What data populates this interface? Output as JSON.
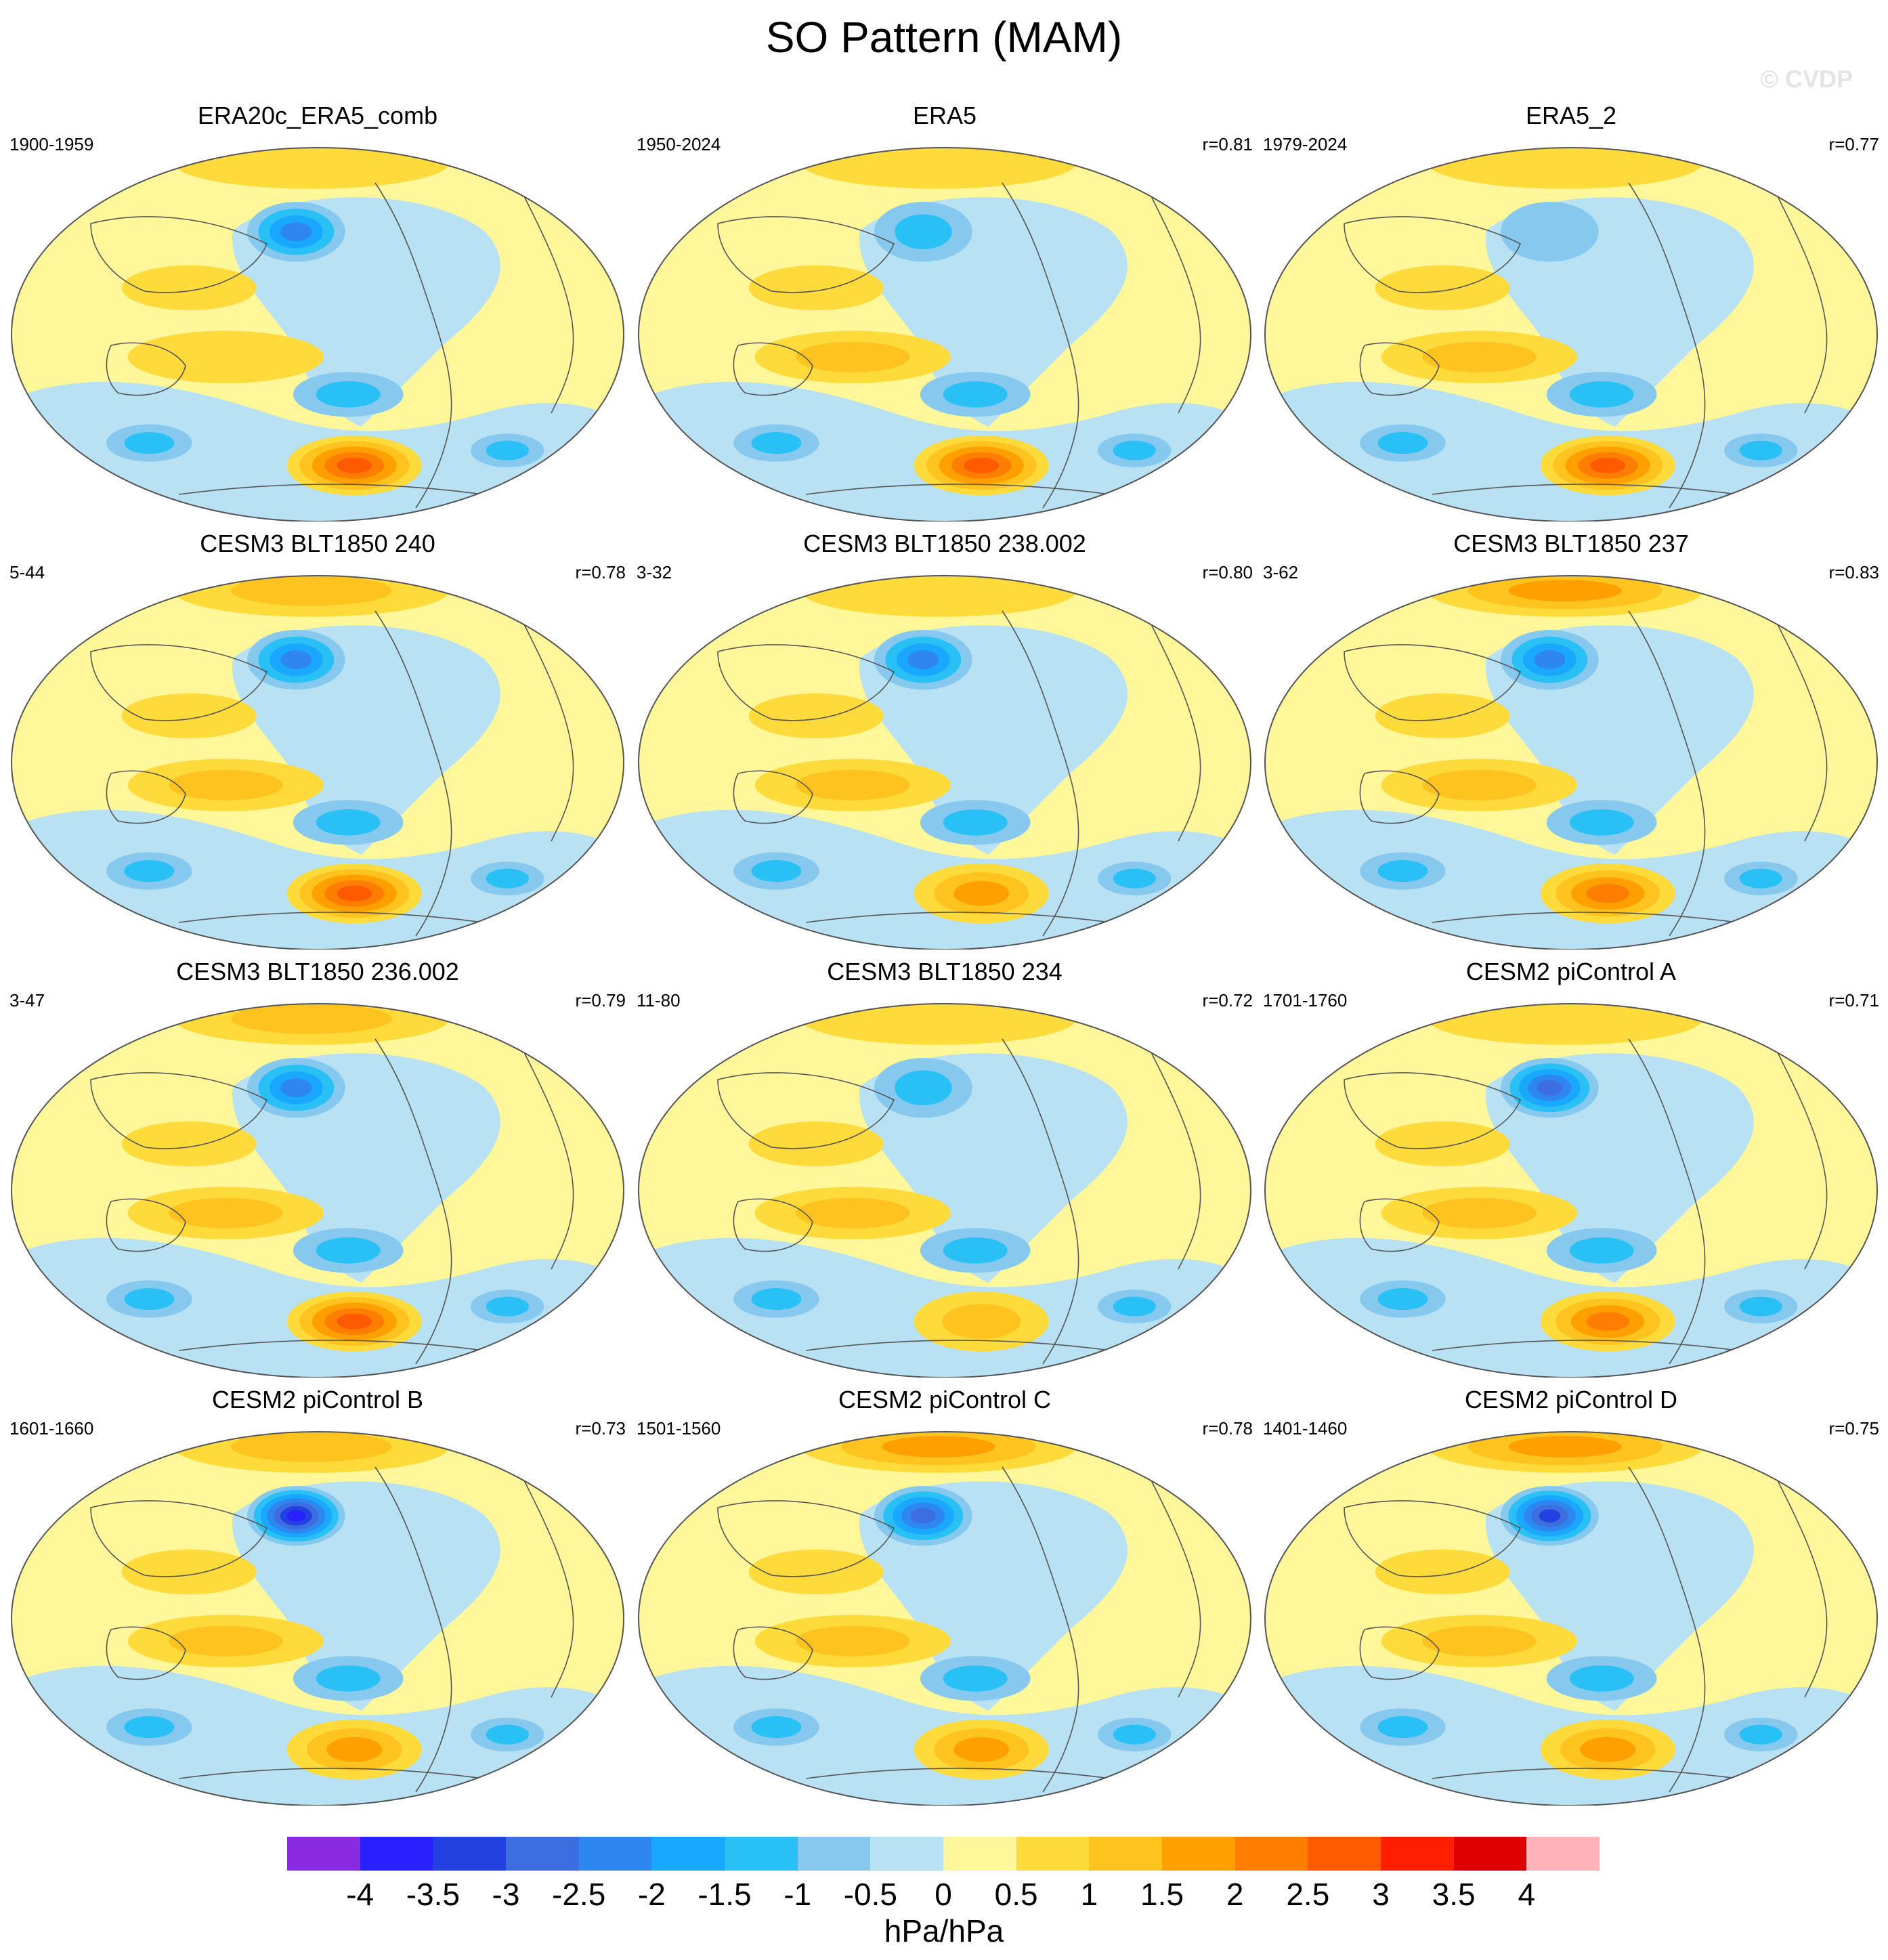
{
  "figure": {
    "title": "SO Pattern (MAM)",
    "watermark": "© CVDP"
  },
  "colors": {
    "neg_-4": "#8a2be2",
    "neg_-3.5": "#2a1fff",
    "neg_-3": "#2340e0",
    "neg_-2.5": "#3c6ee0",
    "neg_-2": "#2e86f0",
    "neg_-1.5": "#1aa8ff",
    "neg_-1": "#29c0f5",
    "neg_-0.5": "#86c8ee",
    "neg_0": "#b8e1f3",
    "pos_0": "#fff79a",
    "pos_0.5": "#ffda3b",
    "pos_1": "#ffc31f",
    "pos_1.5": "#ffa000",
    "pos_2": "#ff7d00",
    "pos_2.5": "#ff5a00",
    "pos_3": "#ff1e00",
    "pos_3.5": "#dd0000",
    "pos_4": "#d8282e",
    "over": "#ffb3b8",
    "coast": "#555555",
    "outline": "#555555"
  },
  "chart_data": {
    "type": "heatmap",
    "projection": "robinson-like global map",
    "units": "hPa/hPa",
    "colorbar_ticks": [
      "-4",
      "-3.5",
      "-3",
      "-2.5",
      "-2",
      "-1.5",
      "-1",
      "-0.5",
      "0",
      "0.5",
      "1",
      "1.5",
      "2",
      "2.5",
      "3",
      "3.5",
      "4"
    ],
    "panels": [
      {
        "title": "ERA20c_ERA5_comb",
        "period": "1900-1959",
        "corr": "",
        "npac_low": -2.0,
        "sh_high": 2.5,
        "arctic": 0.8,
        "ind_aus": 0.8
      },
      {
        "title": "ERA5",
        "period": "1950-2024",
        "corr": "r=0.81",
        "npac_low": -1.0,
        "sh_high": 2.5,
        "arctic": 0.8,
        "ind_aus": 1.0
      },
      {
        "title": "ERA5_2",
        "period": "1979-2024",
        "corr": "r=0.77",
        "npac_low": -0.5,
        "sh_high": 2.5,
        "arctic": 0.6,
        "ind_aus": 1.0
      },
      {
        "title": "CESM3 BLT1850 240",
        "period": "5-44",
        "corr": "r=0.78",
        "npac_low": -2.0,
        "sh_high": 2.5,
        "arctic": 1.2,
        "ind_aus": 1.0
      },
      {
        "title": "CESM3 BLT1850 238.002",
        "period": "3-32",
        "corr": "r=0.80",
        "npac_low": -2.0,
        "sh_high": 1.5,
        "arctic": 0.8,
        "ind_aus": 1.2
      },
      {
        "title": "CESM3 BLT1850 237",
        "period": "3-62",
        "corr": "r=0.83",
        "npac_low": -2.0,
        "sh_high": 2.0,
        "arctic": 1.6,
        "ind_aus": 1.0
      },
      {
        "title": "CESM3 BLT1850 236.002",
        "period": "3-47",
        "corr": "r=0.79",
        "npac_low": -2.0,
        "sh_high": 2.5,
        "arctic": 1.0,
        "ind_aus": 1.0
      },
      {
        "title": "CESM3 BLT1850 234",
        "period": "11-80",
        "corr": "r=0.72",
        "npac_low": -1.0,
        "sh_high": 1.0,
        "arctic": 0.6,
        "ind_aus": 1.0
      },
      {
        "title": "CESM2 piControl A",
        "period": "1701-1760",
        "corr": "r=0.71",
        "npac_low": -2.5,
        "sh_high": 2.0,
        "arctic": 0.6,
        "ind_aus": 1.0
      },
      {
        "title": "CESM2 piControl B",
        "period": "1601-1660",
        "corr": "r=0.73",
        "npac_low": -3.5,
        "sh_high": 1.5,
        "arctic": 1.2,
        "ind_aus": 1.0
      },
      {
        "title": "CESM2 piControl C",
        "period": "1501-1560",
        "corr": "r=0.78",
        "npac_low": -2.5,
        "sh_high": 1.5,
        "arctic": 1.6,
        "ind_aus": 1.2
      },
      {
        "title": "CESM2 piControl D",
        "period": "1401-1460",
        "corr": "r=0.75",
        "npac_low": -3.0,
        "sh_high": 1.5,
        "arctic": 1.6,
        "ind_aus": 1.0
      }
    ]
  }
}
